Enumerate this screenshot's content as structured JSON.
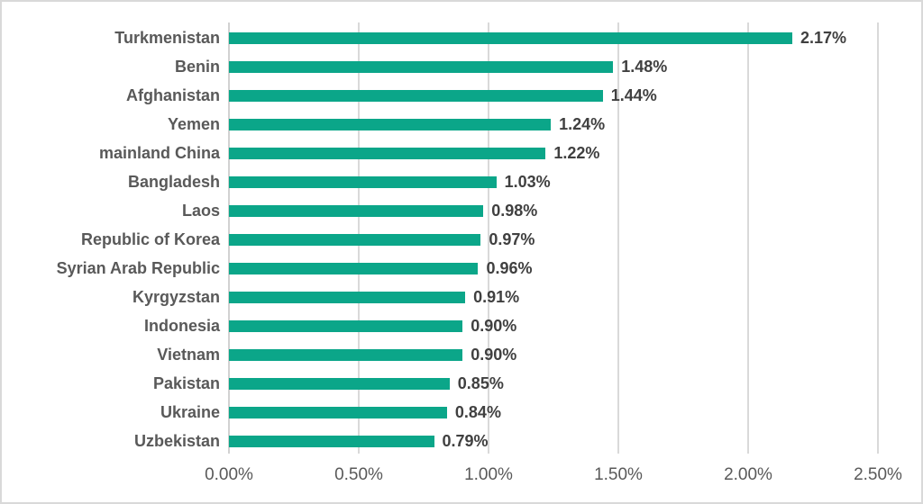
{
  "chart_data": {
    "type": "bar",
    "orientation": "horizontal",
    "title": "",
    "xlabel": "",
    "ylabel": "",
    "categories": [
      "Turkmenistan",
      "Benin",
      "Afghanistan",
      "Yemen",
      "mainland China",
      "Bangladesh",
      "Laos",
      "Republic of Korea",
      "Syrian Arab Republic",
      "Kyrgyzstan",
      "Indonesia",
      "Vietnam",
      "Pakistan",
      "Ukraine",
      "Uzbekistan"
    ],
    "values": [
      2.17,
      1.48,
      1.44,
      1.24,
      1.22,
      1.03,
      0.98,
      0.97,
      0.96,
      0.91,
      0.9,
      0.9,
      0.85,
      0.84,
      0.79
    ],
    "value_labels": [
      "2.17%",
      "1.48%",
      "1.44%",
      "1.24%",
      "1.22%",
      "1.03%",
      "0.98%",
      "0.97%",
      "0.96%",
      "0.91%",
      "0.90%",
      "0.90%",
      "0.85%",
      "0.84%",
      "0.79%"
    ],
    "x_ticks": [
      "0.00%",
      "0.50%",
      "1.00%",
      "1.50%",
      "2.00%",
      "2.50%"
    ],
    "x_tick_values": [
      0,
      0.5,
      1.0,
      1.5,
      2.0,
      2.5
    ],
    "xlim": [
      0,
      2.5
    ],
    "grid": true,
    "legend": false,
    "bar_color": "#0ba689",
    "gridline_color": "#d9d9d9",
    "label_color": "#595959",
    "value_label_color": "#404040"
  }
}
